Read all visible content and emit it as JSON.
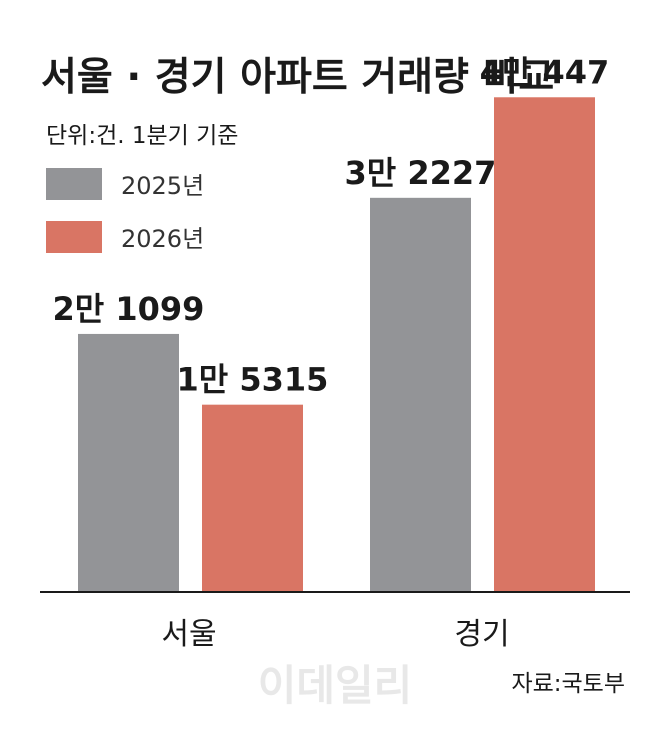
{
  "title": "서울 · 경기 아파트 거래량 비교",
  "unit_note": "단위:건. 1분기 기준",
  "source": "자료:국토부",
  "watermark": "이데일리",
  "colors": {
    "series_2025": "#939497",
    "series_2026": "#d97564",
    "axis": "#1a1a1a"
  },
  "chart_data": {
    "type": "bar",
    "title": "서울 · 경기 아파트 거래량 비교",
    "categories": [
      "서울",
      "경기"
    ],
    "series": [
      {
        "name": "2025년",
        "values": [
          21099,
          32227
        ],
        "labels": [
          "2만 1099",
          "3만 2227"
        ],
        "color": "#939497"
      },
      {
        "name": "2026년",
        "values": [
          15315,
          40447
        ],
        "labels": [
          "1만 5315",
          "4만 447"
        ],
        "color": "#d97564"
      }
    ],
    "ylim": [
      0,
      48400
    ],
    "grid": false,
    "legend_position": "top-left"
  }
}
